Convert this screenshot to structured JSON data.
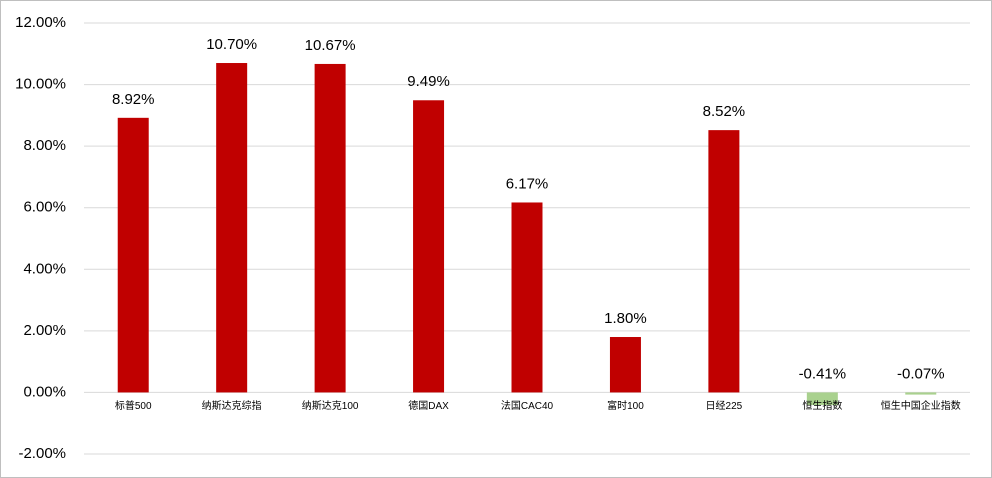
{
  "chart_data": {
    "type": "bar",
    "categories": [
      "标普500",
      "纳斯达克综指",
      "纳斯达克100",
      "德国DAX",
      "法国CAC40",
      "富时100",
      "日经225",
      "恒生指数",
      "恒生中国企业指数"
    ],
    "values": [
      8.92,
      10.7,
      10.67,
      9.49,
      6.17,
      1.8,
      8.52,
      -0.41,
      -0.07
    ],
    "value_labels": [
      "8.92%",
      "10.70%",
      "10.67%",
      "9.49%",
      "6.17%",
      "1.80%",
      "8.52%",
      "-0.41%",
      "-0.07%"
    ],
    "colors": [
      "#c00000",
      "#c00000",
      "#c00000",
      "#c00000",
      "#c00000",
      "#c00000",
      "#c00000",
      "#a9d18e",
      "#a9d18e"
    ],
    "ylim": [
      -2,
      12
    ],
    "yticks": [
      {
        "value": -2,
        "label": "-2.00%"
      },
      {
        "value": 0,
        "label": "0.00%"
      },
      {
        "value": 2,
        "label": "2.00%"
      },
      {
        "value": 4,
        "label": "4.00%"
      },
      {
        "value": 6,
        "label": "6.00%"
      },
      {
        "value": 8,
        "label": "8.00%"
      },
      {
        "value": 10,
        "label": "10.00%"
      },
      {
        "value": 12,
        "label": "12.00%"
      }
    ],
    "grid": true
  }
}
